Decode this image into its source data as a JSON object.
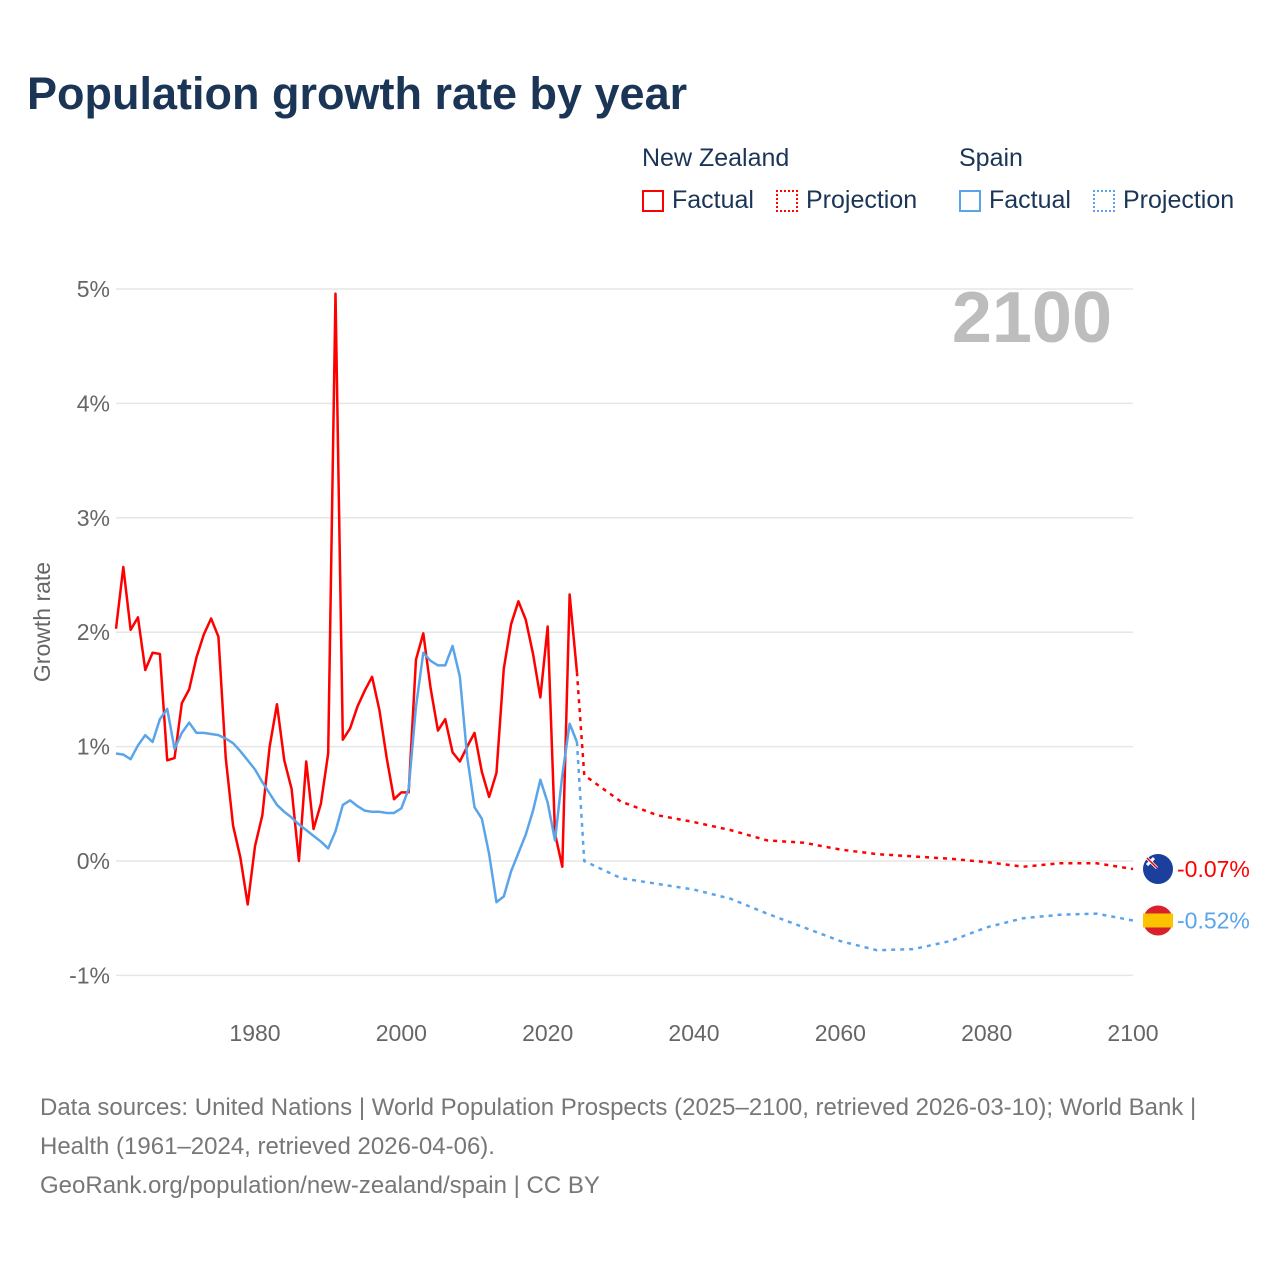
{
  "title": "Population growth rate by year",
  "legend": {
    "groups": [
      {
        "name": "New Zealand",
        "factual": "Factual",
        "projection": "Projection",
        "color": "#ff0000"
      },
      {
        "name": "Spain",
        "factual": "Factual",
        "projection": "Projection",
        "color": "#5aa5ea"
      }
    ]
  },
  "year_label": "2100",
  "footer": {
    "sources": "Data sources: United Nations | World Population Prospects (2025–2100, retrieved 2026-03-10); World Bank | Health (1961–2024, retrieved 2026-04-06).",
    "link": "GeoRank.org/population/new-zealand/spain | CC BY"
  },
  "chart_data": {
    "type": "line",
    "title": "Population growth rate by year",
    "xlabel": "",
    "ylabel": "Growth rate",
    "xlim": [
      1961,
      2100
    ],
    "ylim": [
      -1.2,
      5.3
    ],
    "xticks": [
      1980,
      2000,
      2020,
      2040,
      2060,
      2080,
      2100
    ],
    "yticks": [
      {
        "v": -1,
        "label": "-1%"
      },
      {
        "v": 0,
        "label": "0%"
      },
      {
        "v": 1,
        "label": "1%"
      },
      {
        "v": 2,
        "label": "2%"
      },
      {
        "v": 3,
        "label": "3%"
      },
      {
        "v": 4,
        "label": "4%"
      },
      {
        "v": 5,
        "label": "5%"
      }
    ],
    "grid": true,
    "legend_position": "top-right",
    "series": [
      {
        "name": "New Zealand",
        "color": "#ff0000",
        "end_label": "-0.07%",
        "factual": {
          "start": 1961,
          "values": [
            2.03,
            2.57,
            2.02,
            2.13,
            1.67,
            1.82,
            1.81,
            0.88,
            0.9,
            1.38,
            1.5,
            1.78,
            1.98,
            2.12,
            1.96,
            0.9,
            0.31,
            0.03,
            -0.38,
            0.13,
            0.4,
            1.0,
            1.37,
            0.88,
            0.63,
            0.0,
            0.87,
            0.28,
            0.5,
            0.94,
            4.96,
            1.06,
            1.16,
            1.35,
            1.49,
            1.61,
            1.32,
            0.9,
            0.54,
            0.6,
            0.6,
            1.76,
            1.99,
            1.51,
            1.14,
            1.24,
            0.95,
            0.87,
            1.0,
            1.12,
            0.78,
            0.56,
            0.77,
            1.68,
            2.07,
            2.27,
            2.11,
            1.81,
            1.43,
            2.05,
            0.24,
            -0.05,
            2.33,
            1.65
          ]
        },
        "projection": {
          "x": [
            2024,
            2025,
            2030,
            2035,
            2040,
            2045,
            2050,
            2055,
            2060,
            2065,
            2070,
            2075,
            2080,
            2085,
            2090,
            2095,
            2100
          ],
          "values": [
            1.65,
            0.75,
            0.52,
            0.4,
            0.34,
            0.27,
            0.18,
            0.16,
            0.1,
            0.06,
            0.04,
            0.02,
            -0.01,
            -0.05,
            -0.02,
            -0.02,
            -0.07
          ]
        }
      },
      {
        "name": "Spain",
        "color": "#5aa5ea",
        "end_label": "-0.52%",
        "factual": {
          "start": 1961,
          "values": [
            0.94,
            0.93,
            0.89,
            1.01,
            1.1,
            1.04,
            1.24,
            1.33,
            0.98,
            1.12,
            1.21,
            1.12,
            1.12,
            1.11,
            1.1,
            1.07,
            1.03,
            0.96,
            0.88,
            0.8,
            0.69,
            0.59,
            0.49,
            0.43,
            0.38,
            0.32,
            0.27,
            0.22,
            0.17,
            0.11,
            0.26,
            0.49,
            0.53,
            0.48,
            0.44,
            0.43,
            0.43,
            0.42,
            0.42,
            0.46,
            0.63,
            1.35,
            1.82,
            1.75,
            1.71,
            1.71,
            1.88,
            1.61,
            0.91,
            0.47,
            0.37,
            0.06,
            -0.36,
            -0.31,
            -0.09,
            0.07,
            0.23,
            0.44,
            0.71,
            0.51,
            0.18,
            0.75,
            1.2,
            1.04
          ]
        },
        "projection": {
          "x": [
            2024,
            2025,
            2030,
            2035,
            2040,
            2045,
            2050,
            2055,
            2060,
            2065,
            2070,
            2075,
            2080,
            2085,
            2090,
            2095,
            2100
          ],
          "values": [
            1.04,
            0.0,
            -0.15,
            -0.2,
            -0.25,
            -0.33,
            -0.46,
            -0.58,
            -0.7,
            -0.78,
            -0.77,
            -0.7,
            -0.58,
            -0.5,
            -0.47,
            -0.46,
            -0.52
          ]
        }
      }
    ]
  }
}
